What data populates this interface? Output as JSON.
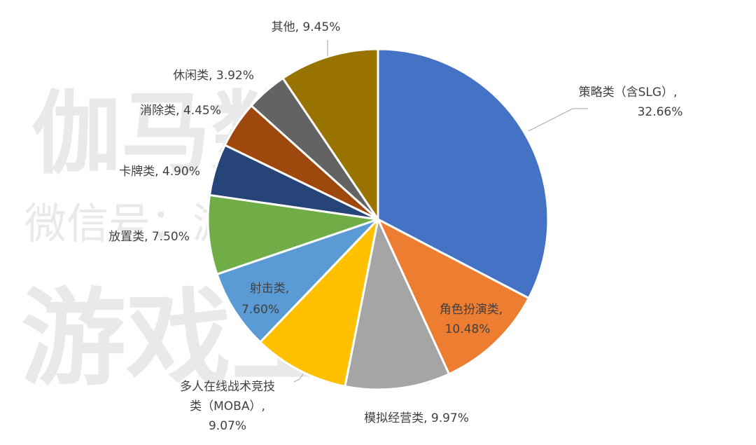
{
  "watermark": {
    "line1": "伽马数据",
    "line2": "微信号：游戏产业报告",
    "line3": "游戏工委"
  },
  "chart_data": {
    "type": "pie",
    "title": "",
    "start_angle_deg": 0,
    "direction": "clockwise",
    "slices": [
      {
        "label": "策略类（含SLG）",
        "value": 32.66,
        "display": "32.66%",
        "color": "#4472C4"
      },
      {
        "label": "角色扮演类",
        "value": 10.48,
        "display": "10.48%",
        "color": "#ED7D31"
      },
      {
        "label": "模拟经营类",
        "value": 9.97,
        "display": "9.97%",
        "color": "#A5A5A5"
      },
      {
        "label": "多人在线战术竞技类（MOBA）",
        "value": 9.07,
        "display": "9.07%",
        "color": "#FFC000"
      },
      {
        "label": "射击类",
        "value": 7.6,
        "display": "7.60%",
        "color": "#5B9BD5"
      },
      {
        "label": "放置类",
        "value": 7.5,
        "display": "7.50%",
        "color": "#70AD47"
      },
      {
        "label": "卡牌类",
        "value": 4.9,
        "display": "4.90%",
        "color": "#264478"
      },
      {
        "label": "消除类",
        "value": 4.45,
        "display": "4.45%",
        "color": "#9E480E"
      },
      {
        "label": "休闲类",
        "value": 3.92,
        "display": "3.92%",
        "color": "#636363"
      },
      {
        "label": "其他",
        "value": 9.45,
        "display": "9.45%",
        "color": "#997300"
      }
    ]
  }
}
